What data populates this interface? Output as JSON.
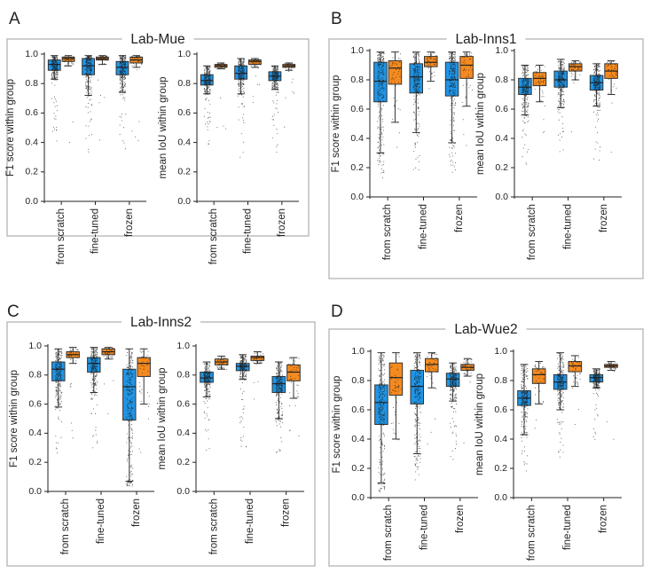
{
  "colors": {
    "scratch_model": "#1f95e6",
    "pretrained_model": "#f58a1f",
    "frame": "#bdbdbd",
    "points": "#1a1a1a"
  },
  "chart_data": [
    {
      "type": "box",
      "letter": "A",
      "title": "Lab-Mue",
      "ylim": [
        0,
        1
      ],
      "yticks": [
        "0.0",
        "0.2",
        "0.4",
        "0.6",
        "0.8",
        "1.0"
      ],
      "categories": [
        "from scratch",
        "fine-tuned",
        "frozen"
      ],
      "subplots": [
        {
          "ylabel": "F1 score within group",
          "boxes": [
            {
              "q1": 0.89,
              "median": 0.93,
              "q3": 0.96,
              "whislo": 0.83,
              "whishi": 0.99
            },
            {
              "q1": 0.95,
              "median": 0.97,
              "q3": 0.98,
              "whislo": 0.92,
              "whishi": 0.99
            },
            {
              "q1": 0.86,
              "median": 0.92,
              "q3": 0.97,
              "whislo": 0.72,
              "whishi": 0.99
            },
            {
              "q1": 0.96,
              "median": 0.97,
              "q3": 0.98,
              "whislo": 0.93,
              "whishi": 0.99
            },
            {
              "q1": 0.86,
              "median": 0.91,
              "q3": 0.95,
              "whislo": 0.74,
              "whishi": 0.99
            },
            {
              "q1": 0.94,
              "median": 0.96,
              "q3": 0.98,
              "whislo": 0.91,
              "whishi": 0.99
            }
          ]
        },
        {
          "ylabel": "mean IoU within group",
          "boxes": [
            {
              "q1": 0.79,
              "median": 0.82,
              "q3": 0.86,
              "whislo": 0.73,
              "whishi": 0.92
            },
            {
              "q1": 0.91,
              "median": 0.92,
              "q3": 0.93,
              "whislo": 0.9,
              "whishi": 0.94
            },
            {
              "q1": 0.83,
              "median": 0.87,
              "q3": 0.92,
              "whislo": 0.73,
              "whishi": 0.97
            },
            {
              "q1": 0.93,
              "median": 0.95,
              "q3": 0.96,
              "whislo": 0.91,
              "whishi": 0.97
            },
            {
              "q1": 0.82,
              "median": 0.85,
              "q3": 0.88,
              "whislo": 0.76,
              "whishi": 0.92
            },
            {
              "q1": 0.91,
              "median": 0.92,
              "q3": 0.93,
              "whislo": 0.89,
              "whishi": 0.94
            }
          ]
        }
      ]
    },
    {
      "type": "box",
      "letter": "B",
      "title": "Lab-Inns1",
      "ylim": [
        0,
        1
      ],
      "yticks": [
        "0.0",
        "0.2",
        "0.4",
        "0.6",
        "0.8",
        "1.0"
      ],
      "categories": [
        "from scratch",
        "fine-tuned",
        "frozen"
      ],
      "subplots": [
        {
          "ylabel": "F1 score within group",
          "boxes": [
            {
              "q1": 0.65,
              "median": 0.79,
              "q3": 0.92,
              "whislo": 0.3,
              "whishi": 0.99
            },
            {
              "q1": 0.77,
              "median": 0.88,
              "q3": 0.93,
              "whislo": 0.51,
              "whishi": 0.99
            },
            {
              "q1": 0.71,
              "median": 0.82,
              "q3": 0.91,
              "whislo": 0.44,
              "whishi": 0.99
            },
            {
              "q1": 0.89,
              "median": 0.92,
              "q3": 0.96,
              "whislo": 0.79,
              "whishi": 0.99
            },
            {
              "q1": 0.69,
              "median": 0.8,
              "q3": 0.92,
              "whislo": 0.37,
              "whishi": 0.99
            },
            {
              "q1": 0.81,
              "median": 0.9,
              "q3": 0.96,
              "whislo": 0.62,
              "whishi": 0.99
            }
          ]
        },
        {
          "ylabel": "mean IoU within group",
          "boxes": [
            {
              "q1": 0.7,
              "median": 0.75,
              "q3": 0.81,
              "whislo": 0.56,
              "whishi": 0.9
            },
            {
              "q1": 0.76,
              "median": 0.81,
              "q3": 0.85,
              "whislo": 0.65,
              "whishi": 0.9
            },
            {
              "q1": 0.75,
              "median": 0.8,
              "q3": 0.86,
              "whislo": 0.61,
              "whishi": 0.94
            },
            {
              "q1": 0.86,
              "median": 0.89,
              "q3": 0.91,
              "whislo": 0.8,
              "whishi": 0.93
            },
            {
              "q1": 0.73,
              "median": 0.78,
              "q3": 0.83,
              "whislo": 0.62,
              "whishi": 0.91
            },
            {
              "q1": 0.81,
              "median": 0.86,
              "q3": 0.91,
              "whislo": 0.7,
              "whishi": 0.93
            }
          ]
        }
      ]
    },
    {
      "type": "box",
      "letter": "C",
      "title": "Lab-Inns2",
      "ylim": [
        0,
        1
      ],
      "yticks": [
        "0.0",
        "0.2",
        "0.4",
        "0.6",
        "0.8",
        "1.0"
      ],
      "categories": [
        "from scratch",
        "fine-tuned",
        "frozen"
      ],
      "subplots": [
        {
          "ylabel": "F1 score within group",
          "boxes": [
            {
              "q1": 0.76,
              "median": 0.84,
              "q3": 0.89,
              "whislo": 0.58,
              "whishi": 0.98
            },
            {
              "q1": 0.92,
              "median": 0.94,
              "q3": 0.96,
              "whislo": 0.88,
              "whishi": 0.99
            },
            {
              "q1": 0.82,
              "median": 0.88,
              "q3": 0.92,
              "whislo": 0.68,
              "whishi": 0.99
            },
            {
              "q1": 0.94,
              "median": 0.96,
              "q3": 0.98,
              "whislo": 0.91,
              "whishi": 0.99
            },
            {
              "q1": 0.49,
              "median": 0.72,
              "q3": 0.84,
              "whislo": 0.07,
              "whishi": 0.98
            },
            {
              "q1": 0.79,
              "median": 0.88,
              "q3": 0.92,
              "whislo": 0.6,
              "whishi": 0.98
            }
          ]
        },
        {
          "ylabel": "mean IoU within group",
          "boxes": [
            {
              "q1": 0.75,
              "median": 0.78,
              "q3": 0.82,
              "whislo": 0.65,
              "whishi": 0.89
            },
            {
              "q1": 0.87,
              "median": 0.89,
              "q3": 0.91,
              "whislo": 0.84,
              "whishi": 0.93
            },
            {
              "q1": 0.83,
              "median": 0.86,
              "q3": 0.88,
              "whislo": 0.77,
              "whishi": 0.94
            },
            {
              "q1": 0.9,
              "median": 0.92,
              "q3": 0.93,
              "whislo": 0.88,
              "whishi": 0.96
            },
            {
              "q1": 0.68,
              "median": 0.74,
              "q3": 0.79,
              "whislo": 0.5,
              "whishi": 0.89
            },
            {
              "q1": 0.76,
              "median": 0.82,
              "q3": 0.87,
              "whislo": 0.64,
              "whishi": 0.92
            }
          ]
        }
      ]
    },
    {
      "type": "box",
      "letter": "D",
      "title": "Lab-Wue2",
      "ylim": [
        0,
        1
      ],
      "yticks": [
        "0.0",
        "0.2",
        "0.4",
        "0.6",
        "0.8",
        "1.0"
      ],
      "categories": [
        "from scratch",
        "fine-tuned",
        "frozen"
      ],
      "subplots": [
        {
          "ylabel": "F1 score within group",
          "boxes": [
            {
              "q1": 0.5,
              "median": 0.65,
              "q3": 0.77,
              "whislo": 0.1,
              "whishi": 0.99
            },
            {
              "q1": 0.7,
              "median": 0.82,
              "q3": 0.92,
              "whislo": 0.4,
              "whishi": 0.99
            },
            {
              "q1": 0.64,
              "median": 0.76,
              "q3": 0.87,
              "whislo": 0.3,
              "whishi": 0.99
            },
            {
              "q1": 0.86,
              "median": 0.91,
              "q3": 0.95,
              "whislo": 0.75,
              "whishi": 0.99
            },
            {
              "q1": 0.76,
              "median": 0.81,
              "q3": 0.85,
              "whislo": 0.66,
              "whishi": 0.92
            },
            {
              "q1": 0.87,
              "median": 0.89,
              "q3": 0.91,
              "whislo": 0.83,
              "whishi": 0.95
            }
          ]
        },
        {
          "ylabel": "mean IoU within group",
          "boxes": [
            {
              "q1": 0.63,
              "median": 0.68,
              "q3": 0.73,
              "whislo": 0.43,
              "whishi": 0.91
            },
            {
              "q1": 0.78,
              "median": 0.84,
              "q3": 0.88,
              "whislo": 0.64,
              "whishi": 0.93
            },
            {
              "q1": 0.74,
              "median": 0.79,
              "q3": 0.84,
              "whislo": 0.6,
              "whishi": 0.99
            },
            {
              "q1": 0.86,
              "median": 0.9,
              "q3": 0.93,
              "whislo": 0.76,
              "whishi": 0.97
            },
            {
              "q1": 0.79,
              "median": 0.82,
              "q3": 0.84,
              "whislo": 0.75,
              "whishi": 0.88
            },
            {
              "q1": 0.89,
              "median": 0.9,
              "q3": 0.91,
              "whislo": 0.87,
              "whishi": 0.93
            }
          ]
        }
      ]
    }
  ]
}
